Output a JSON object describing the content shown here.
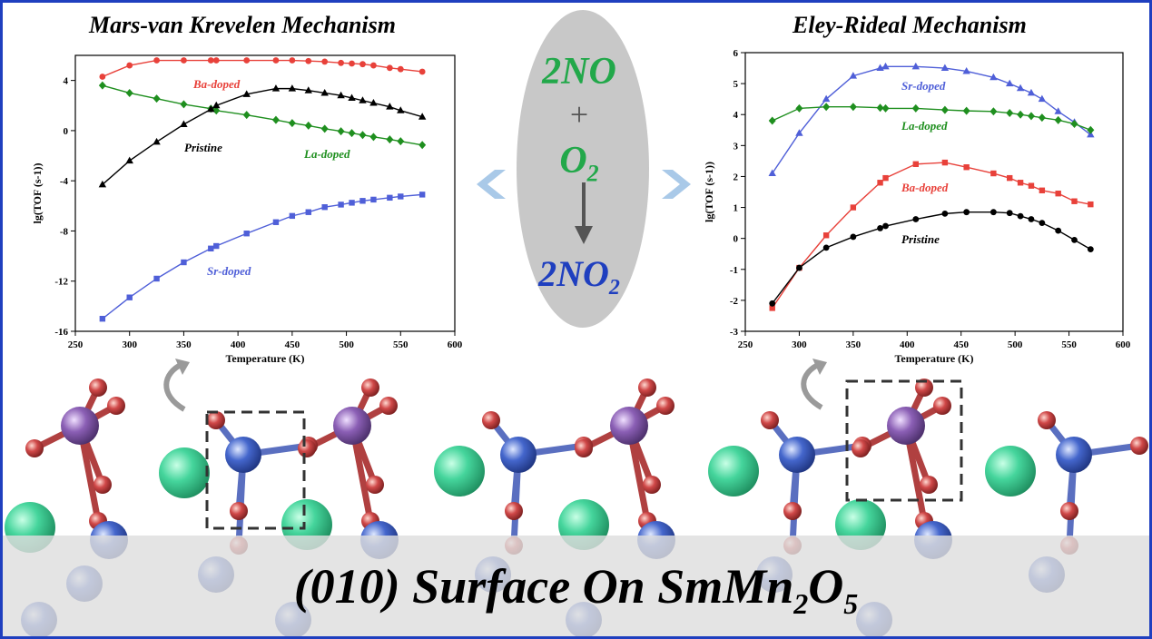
{
  "chart_data": [
    {
      "type": "line",
      "title": "Mars-van Krevelen Mechanism",
      "xlabel": "Temperature (K)",
      "ylabel": "lg(TOF (s-1))",
      "xlim": [
        250,
        600
      ],
      "ylim": [
        -16,
        6
      ],
      "xticks": [
        "250",
        "300",
        "350",
        "400",
        "450",
        "500",
        "550",
        "600"
      ],
      "yticks": [
        "4",
        "0",
        "-4",
        "-8",
        "-12",
        "-16"
      ],
      "series": [
        {
          "name": "Ba-doped",
          "color": "#e8413a",
          "marker": "circle",
          "x": [
            275,
            300,
            325,
            350,
            375,
            380,
            408,
            435,
            450,
            465,
            480,
            495,
            505,
            515,
            525,
            540,
            550,
            570
          ],
          "y": [
            4.3,
            5.2,
            5.6,
            5.6,
            5.6,
            5.6,
            5.6,
            5.6,
            5.6,
            5.55,
            5.5,
            5.4,
            5.35,
            5.3,
            5.2,
            5.0,
            4.9,
            4.7
          ]
        },
        {
          "name": "La-doped",
          "color": "#1f8f1f",
          "marker": "diamond",
          "x": [
            275,
            300,
            325,
            350,
            375,
            380,
            408,
            435,
            450,
            465,
            480,
            495,
            505,
            515,
            525,
            540,
            550,
            570
          ],
          "y": [
            3.6,
            3.0,
            2.55,
            2.1,
            1.75,
            1.6,
            1.25,
            0.85,
            0.6,
            0.4,
            0.15,
            -0.05,
            -0.2,
            -0.35,
            -0.5,
            -0.7,
            -0.85,
            -1.15
          ]
        },
        {
          "name": "Pristine",
          "color": "#000000",
          "marker": "triangle",
          "x": [
            275,
            300,
            325,
            350,
            375,
            380,
            408,
            435,
            450,
            465,
            480,
            495,
            505,
            515,
            525,
            540,
            550,
            570
          ],
          "y": [
            -4.3,
            -2.4,
            -0.9,
            0.5,
            1.7,
            2.0,
            2.9,
            3.35,
            3.35,
            3.2,
            3.0,
            2.8,
            2.6,
            2.4,
            2.2,
            1.9,
            1.6,
            1.1
          ]
        },
        {
          "name": "Sr-doped",
          "color": "#4f5fd8",
          "marker": "square",
          "x": [
            275,
            300,
            325,
            350,
            375,
            380,
            408,
            435,
            450,
            465,
            480,
            495,
            505,
            515,
            525,
            540,
            550,
            570
          ],
          "y": [
            -15.0,
            -13.3,
            -11.8,
            -10.5,
            -9.4,
            -9.2,
            -8.2,
            -7.3,
            -6.8,
            -6.5,
            -6.1,
            -5.9,
            -5.75,
            -5.6,
            -5.5,
            -5.35,
            -5.25,
            -5.1
          ]
        }
      ]
    },
    {
      "type": "line",
      "title": "Eley-Rideal Mechanism",
      "xlabel": "Temperature (K)",
      "ylabel": "lg(TOF (s-1))",
      "xlim": [
        250,
        600
      ],
      "ylim": [
        -3,
        6
      ],
      "xticks": [
        "250",
        "300",
        "350",
        "400",
        "450",
        "500",
        "550",
        "600"
      ],
      "yticks": [
        "6",
        "5",
        "4",
        "3",
        "2",
        "1",
        "0",
        "-1",
        "-2",
        "-3"
      ],
      "series": [
        {
          "name": "Sr-doped",
          "color": "#4f5fd8",
          "marker": "triangle",
          "x": [
            275,
            300,
            325,
            350,
            375,
            380,
            408,
            435,
            455,
            480,
            495,
            505,
            515,
            525,
            540,
            555,
            570
          ],
          "y": [
            2.1,
            3.4,
            4.5,
            5.25,
            5.5,
            5.55,
            5.55,
            5.5,
            5.4,
            5.2,
            5.0,
            4.85,
            4.7,
            4.5,
            4.1,
            3.75,
            3.35
          ]
        },
        {
          "name": "La-doped",
          "color": "#1f8f1f",
          "marker": "diamond",
          "x": [
            275,
            300,
            325,
            350,
            375,
            380,
            408,
            435,
            455,
            480,
            495,
            505,
            515,
            525,
            540,
            555,
            570
          ],
          "y": [
            3.8,
            4.2,
            4.25,
            4.25,
            4.22,
            4.2,
            4.2,
            4.15,
            4.12,
            4.1,
            4.05,
            4.0,
            3.95,
            3.9,
            3.82,
            3.7,
            3.5
          ]
        },
        {
          "name": "Ba-doped",
          "color": "#e8413a",
          "marker": "square",
          "x": [
            275,
            300,
            325,
            350,
            375,
            380,
            408,
            435,
            455,
            480,
            495,
            505,
            515,
            525,
            540,
            555,
            570
          ],
          "y": [
            -2.25,
            -0.95,
            0.1,
            1.0,
            1.8,
            1.95,
            2.4,
            2.45,
            2.3,
            2.1,
            1.95,
            1.8,
            1.7,
            1.55,
            1.45,
            1.2,
            1.1
          ]
        },
        {
          "name": "Pristine",
          "color": "#000000",
          "marker": "circle",
          "x": [
            275,
            300,
            325,
            350,
            375,
            380,
            408,
            435,
            455,
            480,
            495,
            505,
            515,
            525,
            540,
            555,
            570
          ],
          "y": [
            -2.1,
            -0.95,
            -0.3,
            0.05,
            0.33,
            0.4,
            0.62,
            0.8,
            0.85,
            0.85,
            0.82,
            0.72,
            0.62,
            0.5,
            0.25,
            -0.05,
            -0.35
          ]
        }
      ]
    }
  ],
  "reaction": {
    "reactant1": "2NO",
    "plus": "+",
    "reactant2_base": "O",
    "reactant2_sub": "2",
    "product_base": "2NO",
    "product_sub": "2"
  },
  "banner": {
    "main": "(010) Surface On SmMn",
    "sub1": "2",
    "mid": "O",
    "sub2": "5"
  },
  "colors": {
    "border": "#1f3fbf",
    "reactant_green": "#22a84a",
    "product_blue": "#1f3fbf",
    "arrow_blue": "#a9c9e8",
    "sm_green": "#3ed99a",
    "mn_purple": "#8a5fb0",
    "mn_blue": "#3f63c8",
    "o_red": "#cc4040"
  }
}
